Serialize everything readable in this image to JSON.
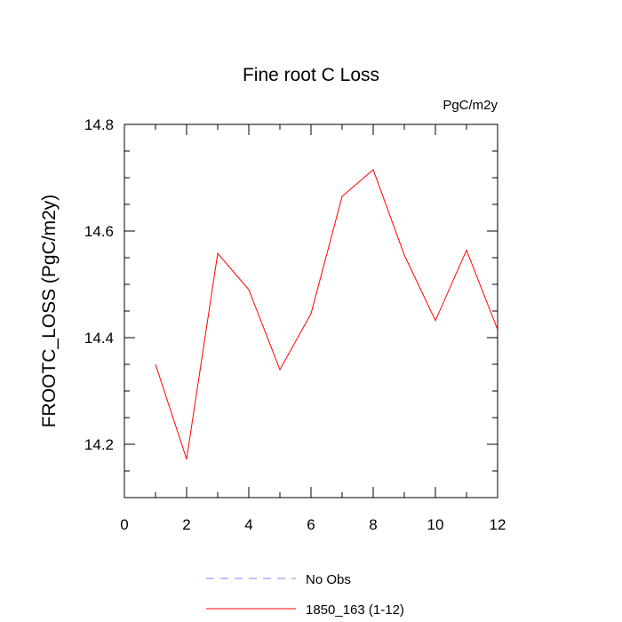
{
  "chart_data": {
    "type": "line",
    "title": "Fine root C Loss",
    "units": "PgC/m2y",
    "ylabel": "FROOTC_LOSS  (PgC/m2y)",
    "xlabel": "",
    "xlim": [
      0,
      12
    ],
    "ylim": [
      14.1,
      14.8
    ],
    "x_ticks": [
      0,
      2,
      4,
      6,
      8,
      10,
      12
    ],
    "x_tick_labels": [
      "0",
      "2",
      "4",
      "6",
      "8",
      "10",
      "12"
    ],
    "y_ticks": [
      14.2,
      14.4,
      14.6,
      14.8
    ],
    "y_tick_labels": [
      "14.2",
      "14.4",
      "14.6",
      "14.8"
    ],
    "grid": false,
    "legend_position": "bottom",
    "series": [
      {
        "name": "No Obs",
        "color": "#8080ff",
        "dash": "dashed",
        "x": [],
        "values": []
      },
      {
        "name": "1850_163 (1-12)",
        "color": "#ff0000",
        "dash": "solid",
        "x": [
          1,
          2,
          3,
          4,
          5,
          6,
          7,
          8,
          9,
          10,
          11,
          12
        ],
        "values": [
          14.35,
          14.172,
          14.558,
          14.49,
          14.34,
          14.445,
          14.665,
          14.715,
          14.555,
          14.432,
          14.564,
          14.415
        ]
      }
    ]
  }
}
